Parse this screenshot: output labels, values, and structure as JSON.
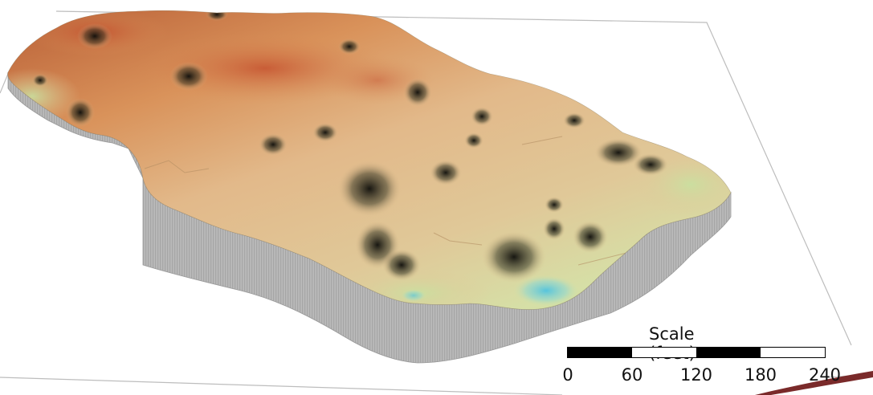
{
  "scale": {
    "title": "Scale (feet)",
    "ticks": [
      "0",
      "60",
      "120",
      "180",
      "240"
    ]
  },
  "colors": {
    "high_elevation": "#c8623a",
    "mid_elevation": "#e2b98a",
    "low_elevation": "#d9e2a4",
    "depression": "#5ac6d6",
    "walls": "#a7a7a7",
    "base_plane_line": "#bdbdbd",
    "accent_swoosh": "#7a2a2a"
  }
}
